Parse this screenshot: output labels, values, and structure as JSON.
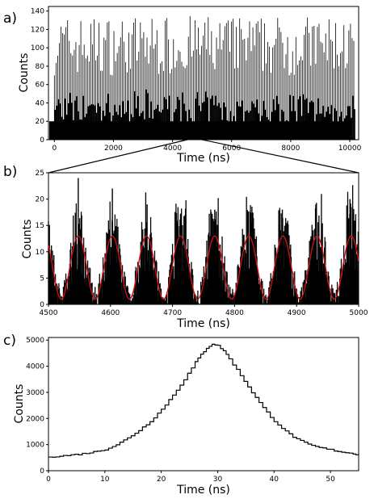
{
  "figure": {
    "panel_labels": [
      "a)",
      "b)",
      "c)"
    ]
  },
  "chart_data": [
    {
      "panel": "a)",
      "type": "bar",
      "xlabel": "Time (ns)",
      "ylabel": "Counts",
      "xlim": [
        -200,
        10300
      ],
      "ylim": [
        0,
        145
      ],
      "xticks": [
        0,
        2000,
        4000,
        6000,
        8000,
        10000
      ],
      "yticks": [
        0,
        20,
        40,
        60,
        80,
        100,
        120,
        140
      ],
      "bar_color": "#000000",
      "description_series": {
        "name": "",
        "pulse_period_ns": 56,
        "peak_counts_range": [
          70,
          135
        ],
        "baseline_counts_range": [
          10,
          25
        ],
        "x_range": [
          0,
          10150
        ]
      }
    },
    {
      "panel": "b)",
      "type": "bar",
      "xlabel": "Time (ns)",
      "ylabel": "Counts",
      "xlim": [
        4500,
        5000
      ],
      "ylim": [
        0,
        25
      ],
      "xticks": [
        4500,
        4600,
        4700,
        4800,
        4900,
        5000
      ],
      "yticks": [
        0,
        5,
        10,
        15,
        20,
        25
      ],
      "bar_color": "#000000",
      "fit_color": "#cc1111",
      "peaks_x": [
        4548,
        4603,
        4659,
        4713,
        4768,
        4822,
        4877,
        4931,
        4986
      ],
      "peaks_max": [
        24,
        22,
        19,
        17,
        18,
        17,
        18,
        19,
        20
      ],
      "fit": {
        "type": "sinusoid",
        "period_ns": 55,
        "phase_peak_ns": 4548,
        "mean": 7,
        "amplitude": 6
      },
      "zoom_from_panel_a": [
        4500,
        5000
      ]
    },
    {
      "panel": "c)",
      "type": "line",
      "step": true,
      "xlabel": "Time (ns)",
      "ylabel": "Counts",
      "xlim": [
        0,
        55
      ],
      "ylim": [
        0,
        5100
      ],
      "xticks": [
        0,
        10,
        20,
        30,
        40,
        50
      ],
      "yticks": [
        0,
        1000,
        2000,
        3000,
        4000,
        5000
      ],
      "line_color": "#000000",
      "series": [
        {
          "name": "",
          "x": [
            0,
            2,
            4,
            6,
            8,
            10,
            12,
            14,
            16,
            18,
            20,
            22,
            24,
            26,
            27,
            28,
            29,
            30,
            31,
            32,
            34,
            36,
            38,
            40,
            42,
            44,
            46,
            48,
            50,
            52,
            54,
            55
          ],
          "values": [
            540,
            560,
            600,
            650,
            720,
            820,
            1000,
            1250,
            1550,
            1900,
            2350,
            2900,
            3500,
            4150,
            4450,
            4700,
            4860,
            4780,
            4600,
            4280,
            3650,
            3000,
            2400,
            1900,
            1500,
            1200,
            1000,
            880,
            800,
            720,
            650,
            620
          ]
        }
      ]
    }
  ]
}
